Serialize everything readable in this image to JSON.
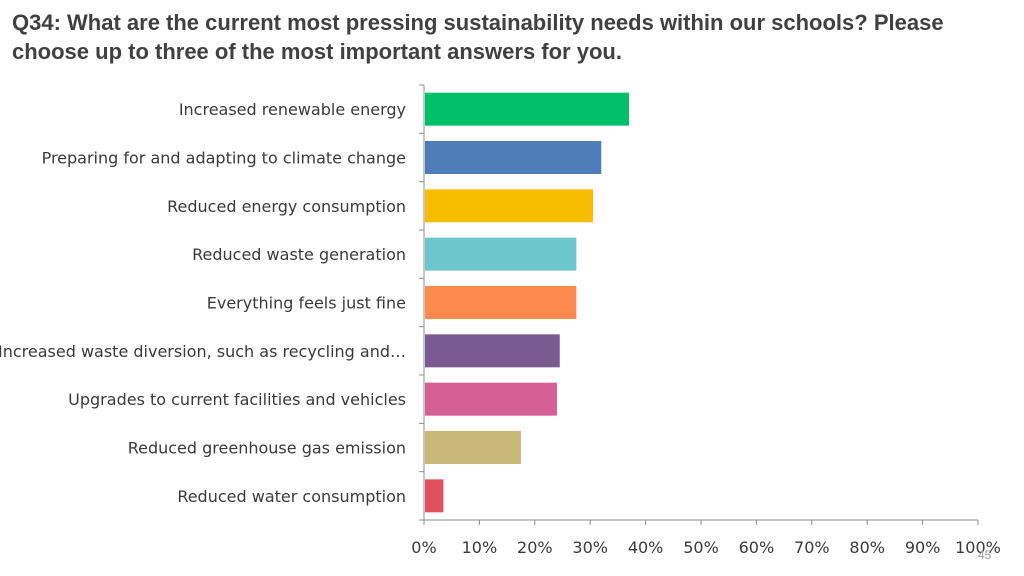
{
  "title": "Q34: What are the current most pressing sustainability needs within our schools? Please choose up to three of the most important answers for you.",
  "page_number": "45",
  "chart_data": {
    "type": "bar",
    "orientation": "horizontal",
    "categories": [
      "Increased renewable energy",
      "Preparing for and adapting to climate change",
      "Reduced energy consumption",
      "Reduced waste generation",
      "Everything feels just fine",
      "Increased waste diversion, such as recycling and…",
      "Upgrades to current facilities and vehicles",
      "Reduced greenhouse gas emission",
      "Reduced water consumption"
    ],
    "values": [
      37,
      32,
      30.5,
      27.5,
      27.5,
      24.5,
      24,
      17.5,
      3.5
    ],
    "colors": [
      "#00c06b",
      "#4e7dba",
      "#f7be00",
      "#6cc6cc",
      "#ff8a50",
      "#7a5a91",
      "#d66094",
      "#c8b978",
      "#e0505e"
    ],
    "xlim": [
      0,
      100
    ],
    "xticks": [
      "0%",
      "10%",
      "20%",
      "30%",
      "40%",
      "50%",
      "60%",
      "70%",
      "80%",
      "90%",
      "100%"
    ],
    "xlabel": "",
    "ylabel": "",
    "grid": false,
    "legend": "none"
  }
}
